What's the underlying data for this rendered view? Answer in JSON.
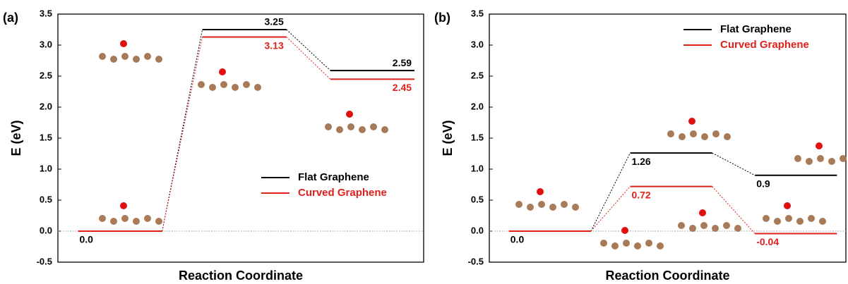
{
  "chart_data": [
    {
      "type": "energy-level",
      "panel_label": "(a)",
      "ylabel": "E (eV)",
      "xlabel": "Reaction Coordinate",
      "ylim": [
        -0.5,
        3.5
      ],
      "yticks": [
        -0.5,
        {
          "value": 0,
          "label": "0.0"
        },
        0.5,
        {
          "value": 1,
          "label": "1.0"
        },
        1.5,
        {
          "value": 2,
          "label": "2.0"
        },
        2.5,
        {
          "value": 3,
          "label": "3.0"
        },
        3.5
      ],
      "legend": "lower right",
      "series": [
        {
          "name": "Flat Graphene",
          "color": "#000000",
          "values": [
            0,
            3.25,
            2.59
          ],
          "value_labels": [
            "0.0",
            "3.25",
            "2.59"
          ]
        },
        {
          "name": "Curved Graphene",
          "color": "#e0201b",
          "values": [
            0,
            3.13,
            2.45
          ],
          "value_labels": [
            null,
            "3.13",
            "2.45"
          ]
        }
      ]
    },
    {
      "type": "energy-level",
      "panel_label": "(b)",
      "ylabel": "E (eV)",
      "xlabel": "Reaction Coordinate",
      "ylim": [
        -0.5,
        3.5
      ],
      "yticks": [
        -0.5,
        {
          "value": 0,
          "label": "0.0"
        },
        0.5,
        {
          "value": 1,
          "label": "1.0"
        },
        1.5,
        {
          "value": 2,
          "label": "2.0"
        },
        2.5,
        {
          "value": 3,
          "label": "3.0"
        },
        3.5
      ],
      "legend": "upper right",
      "series": [
        {
          "name": "Flat Graphene",
          "color": "#000000",
          "values": [
            0,
            1.26,
            0.9
          ],
          "value_labels": [
            "0.0",
            "1.26",
            "0.9"
          ]
        },
        {
          "name": "Curved Graphene",
          "color": "#e0201b",
          "values": [
            0,
            0.72,
            -0.04
          ],
          "value_labels": [
            null,
            "0.72",
            "-0.04"
          ]
        }
      ]
    }
  ]
}
